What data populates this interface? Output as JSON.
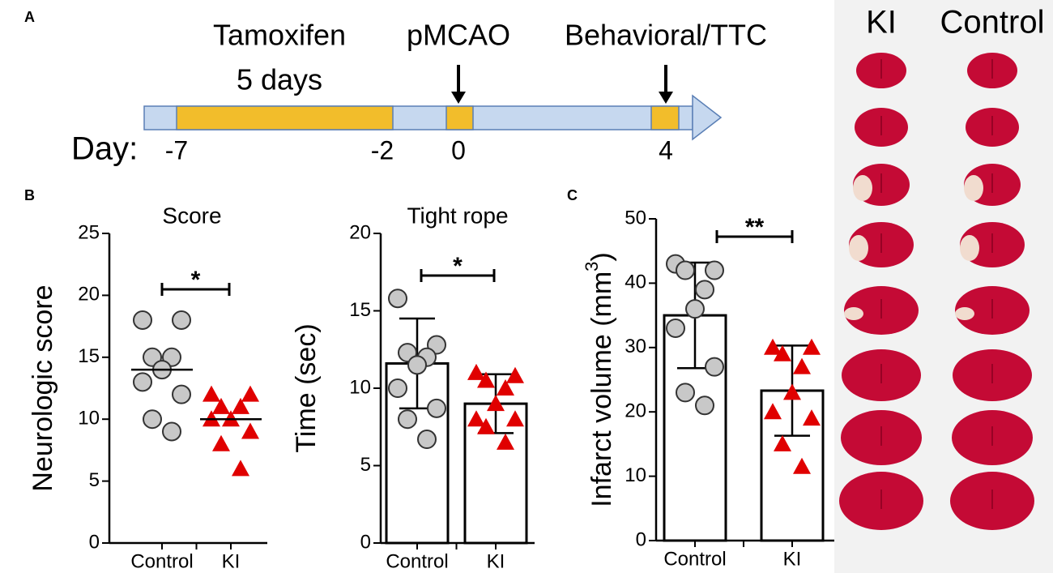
{
  "panel_labels": [
    "A",
    "B",
    "C"
  ],
  "timeline": {
    "texts": [
      "Tamoxifen",
      "5 days",
      "pMCAO",
      "Behavioral/TTC"
    ],
    "day_label": "Day:",
    "days": [
      -7,
      -2,
      0,
      4
    ]
  },
  "images": {
    "columns": [
      "KI",
      "Control"
    ]
  },
  "chart_data": [
    {
      "type": "dot",
      "title": "Score",
      "ylabel": "Neurologic score",
      "categories": [
        "Control",
        "KI"
      ],
      "groups": [
        {
          "marker": "circle",
          "color": "#c8c8c8",
          "values": [
            18,
            18,
            15,
            15,
            14,
            13,
            12,
            10,
            9
          ],
          "mean": 14
        },
        {
          "marker": "triangle",
          "color": "#e00000",
          "values": [
            12,
            12,
            11,
            11,
            10,
            10,
            9,
            8,
            6
          ],
          "mean": 10
        }
      ],
      "ylim": [
        0,
        25
      ],
      "yticks": [
        0,
        5,
        10,
        15,
        20,
        25
      ],
      "significance": "*"
    },
    {
      "type": "bar",
      "title": "Tight rope",
      "ylabel": "Time (sec)",
      "categories": [
        "Control",
        "KI"
      ],
      "groups": [
        {
          "marker": "circle",
          "color": "#c8c8c8",
          "values": [
            15.8,
            12.8,
            12.3,
            12,
            11.5,
            10,
            8.7,
            8,
            6.7
          ],
          "mean": 11.6,
          "error": 2.9
        },
        {
          "marker": "triangle",
          "color": "#e00000",
          "values": [
            11,
            10.8,
            10.5,
            10,
            9,
            8,
            8,
            7.5,
            6.5
          ],
          "mean": 9,
          "error": 1.9
        }
      ],
      "ylim": [
        0,
        20
      ],
      "yticks": [
        0,
        5,
        10,
        15,
        20
      ],
      "significance": "*"
    },
    {
      "type": "bar",
      "ylabel": [
        "Infarct volume (mm",
        "3",
        ")"
      ],
      "categories": [
        "Control",
        "KI"
      ],
      "groups": [
        {
          "marker": "circle",
          "color": "#c8c8c8",
          "values": [
            43,
            42,
            42,
            39,
            36,
            33,
            27,
            23,
            21
          ],
          "mean": 35,
          "error": 8.2
        },
        {
          "marker": "triangle",
          "color": "#e00000",
          "values": [
            30,
            30,
            29,
            27,
            23,
            20,
            19,
            15,
            11.5
          ],
          "mean": 23.3,
          "error": 7
        }
      ],
      "ylim": [
        0,
        50
      ],
      "yticks": [
        0,
        10,
        20,
        30,
        40,
        50
      ],
      "significance": "**"
    }
  ]
}
